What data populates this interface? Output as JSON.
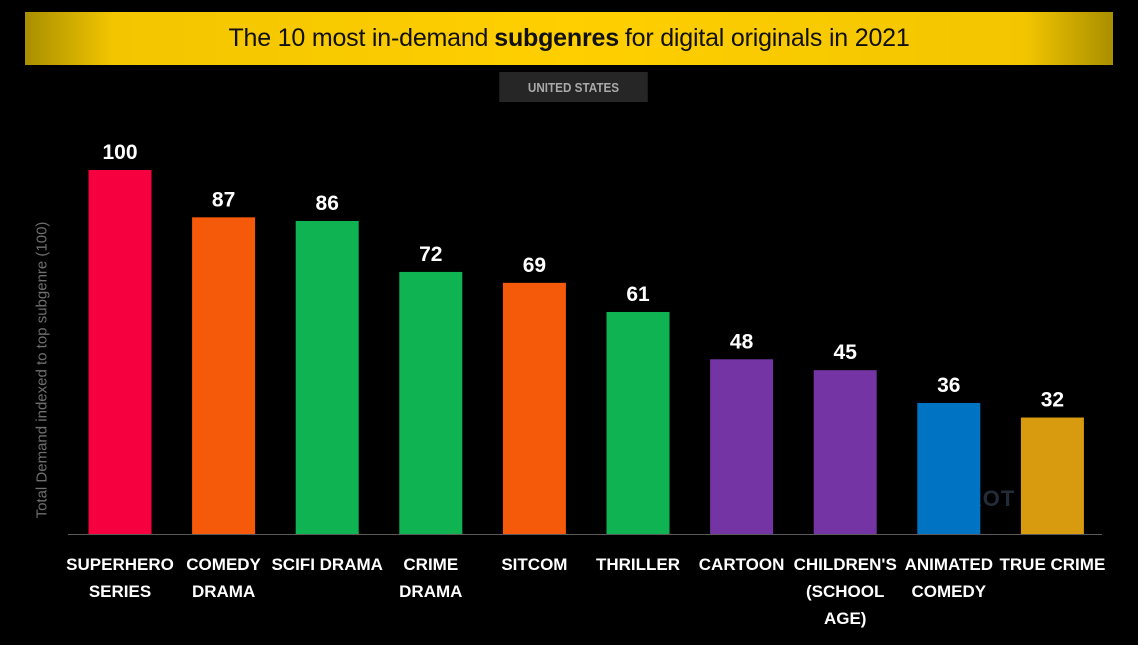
{
  "header": {
    "title_pre": "The 10 most in-demand",
    "title_bold": "subgenres",
    "title_post": "for digital originals in 2021",
    "subtitle": "UNITED STATES",
    "watermark": "PARROT"
  },
  "chart_data": {
    "type": "bar",
    "title": "The 10 most in-demand subgenres for digital originals in 2021",
    "subtitle": "UNITED STATES",
    "xlabel": "",
    "ylabel": "Total Demand indexed to top subgenre (100)",
    "ylim": [
      0,
      100
    ],
    "grid": false,
    "categories": [
      [
        "SUPERHERO",
        "SERIES"
      ],
      [
        "COMEDY",
        "DRAMA"
      ],
      [
        "SCIFI DRAMA"
      ],
      [
        "CRIME",
        "DRAMA"
      ],
      [
        "SITCOM"
      ],
      [
        "THRILLER"
      ],
      [
        "CARTOON"
      ],
      [
        "CHILDREN'S",
        "(SCHOOL",
        "AGE)"
      ],
      [
        "ANIMATED",
        "COMEDY"
      ],
      [
        "TRUE CRIME"
      ]
    ],
    "values": [
      100,
      87,
      86,
      72,
      69,
      61,
      48,
      45,
      36,
      32
    ],
    "colors": [
      "#f70040",
      "#f55a0a",
      "#10b352",
      "#10b352",
      "#f55a0a",
      "#10b352",
      "#7434a3",
      "#7434a3",
      "#0073c2",
      "#d89b10"
    ]
  }
}
